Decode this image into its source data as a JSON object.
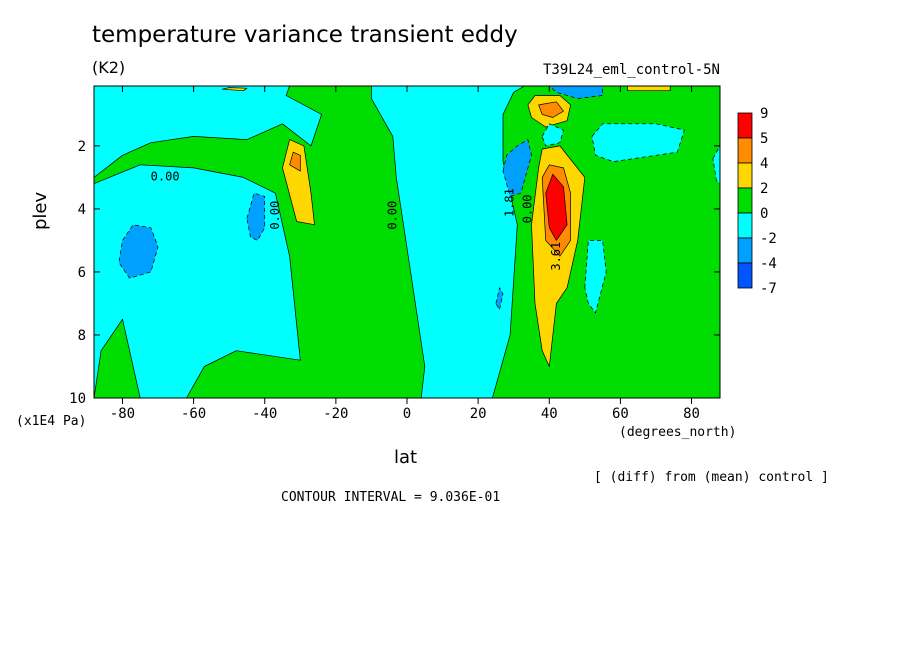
{
  "title": "temperature variance transient eddy",
  "units": "(K2)",
  "run": "T39L24_eml_control-5N",
  "y_unit": "(x1E4 Pa)",
  "x_unit": "(degrees_north)",
  "diff_note": "[ (diff) from (mean) control ]",
  "contour_interval": "CONTOUR INTERVAL = 9.036E-01",
  "chart_data": {
    "type": "heatmap",
    "xlabel": "lat",
    "ylabel": "plev",
    "xlim": [
      -88,
      88
    ],
    "ylim": [
      0.1,
      10
    ],
    "y_inverted": true,
    "x_ticks": [
      -80,
      -60,
      -40,
      -20,
      0,
      20,
      40,
      60,
      80
    ],
    "x_tick_labels": [
      "-80",
      "-60",
      "-40",
      "-20",
      "0",
      "20",
      "40",
      "60",
      "80"
    ],
    "y_ticks": [
      2,
      4,
      6,
      8,
      10
    ],
    "y_tick_labels": [
      "2",
      "4",
      "6",
      "8",
      "10"
    ],
    "legend": {
      "placement": "right",
      "levels": [
        "9",
        "5",
        "4",
        "2",
        "0",
        "-2",
        "-4",
        "-7"
      ],
      "colors": [
        "#ff0000",
        "#ff8c00",
        "#ffd700",
        "#00dd00",
        "#00ffff",
        "#00a0ff",
        "#0055ff"
      ]
    },
    "contour_labels": [
      {
        "text": "0.00",
        "lat": -68,
        "plev": 3.1
      },
      {
        "text": "0.00",
        "lat": -36,
        "plev": 4.2
      },
      {
        "text": "0.00",
        "lat": -3,
        "plev": 4.2
      },
      {
        "text": "1.81",
        "lat": 30,
        "plev": 3.8
      },
      {
        "text": "0.00",
        "lat": 35,
        "plev": 4.0
      },
      {
        "text": "3.61",
        "lat": 43,
        "plev": 5.5
      }
    ],
    "regions": [
      {
        "level": "0_2",
        "color": "#00dd00",
        "points": [
          [
            -88,
            3.0
          ],
          [
            -80,
            2.3
          ],
          [
            -72,
            1.9
          ],
          [
            -60,
            1.7
          ],
          [
            -45,
            1.8
          ],
          [
            -35,
            1.3
          ],
          [
            -27,
            2.0
          ],
          [
            -24,
            1.0
          ],
          [
            -34,
            0.4
          ],
          [
            -33,
            0.1
          ],
          [
            -10,
            0.1
          ],
          [
            -10,
            0.5
          ],
          [
            -4,
            1.7
          ],
          [
            -3,
            3.0
          ],
          [
            1,
            6.0
          ],
          [
            5,
            9.0
          ],
          [
            4,
            10
          ],
          [
            -62,
            10
          ],
          [
            -57,
            9.0
          ],
          [
            -48,
            8.5
          ],
          [
            -30,
            8.8
          ],
          [
            -33,
            5.5
          ],
          [
            -37,
            3.5
          ],
          [
            -46,
            3.0
          ],
          [
            -60,
            2.7
          ],
          [
            -75,
            2.6
          ],
          [
            -88,
            3.2
          ]
        ]
      },
      {
        "level": "0_2",
        "color": "#00dd00",
        "points": [
          [
            -88,
            10
          ],
          [
            -86,
            8.5
          ],
          [
            -80,
            7.5
          ],
          [
            -75,
            10
          ]
        ]
      },
      {
        "level": "0_2",
        "color": "#00dd00",
        "points": [
          [
            24,
            10
          ],
          [
            29,
            8.0
          ],
          [
            31,
            4.5
          ],
          [
            27,
            2.5
          ],
          [
            27,
            1.0
          ],
          [
            30,
            0.3
          ],
          [
            33,
            0.1
          ],
          [
            88,
            0.1
          ],
          [
            88,
            10
          ]
        ]
      },
      {
        "level": "2_4",
        "color": "#ffd700",
        "points": [
          [
            -35,
            2.7
          ],
          [
            -33,
            1.8
          ],
          [
            -29,
            2.0
          ],
          [
            -27,
            3.5
          ],
          [
            -26,
            4.5
          ],
          [
            -31,
            4.4
          ]
        ]
      },
      {
        "level": "4_5",
        "color": "#ff8c00",
        "points": [
          [
            -33,
            2.6
          ],
          [
            -32,
            2.2
          ],
          [
            -30,
            2.3
          ],
          [
            -30,
            2.8
          ]
        ]
      },
      {
        "level": "2_4",
        "color": "#ffd700",
        "points": [
          [
            34,
            0.7
          ],
          [
            36,
            0.4
          ],
          [
            43,
            0.4
          ],
          [
            46,
            0.7
          ],
          [
            45,
            1.2
          ],
          [
            39,
            1.4
          ],
          [
            35,
            1.1
          ]
        ]
      },
      {
        "level": "4_5",
        "color": "#ff8c00",
        "points": [
          [
            37,
            0.7
          ],
          [
            42,
            0.6
          ],
          [
            44,
            0.9
          ],
          [
            41,
            1.1
          ],
          [
            38,
            1.0
          ]
        ]
      },
      {
        "level": "2_4",
        "color": "#ffd700",
        "points": [
          [
            37,
            2.7
          ],
          [
            38,
            2.1
          ],
          [
            43,
            2.0
          ],
          [
            50,
            3.0
          ],
          [
            48,
            5.0
          ],
          [
            45,
            6.5
          ],
          [
            42,
            7.0
          ],
          [
            40,
            9.0
          ],
          [
            38,
            8.5
          ],
          [
            36,
            7.0
          ],
          [
            35,
            4.5
          ]
        ]
      },
      {
        "level": "4_5",
        "color": "#ff8c00",
        "points": [
          [
            38,
            3.0
          ],
          [
            40,
            2.6
          ],
          [
            44,
            2.7
          ],
          [
            46,
            3.5
          ],
          [
            46,
            5.0
          ],
          [
            43,
            5.5
          ],
          [
            39,
            5.0
          ]
        ]
      },
      {
        "level": "5_9",
        "color": "#ff0000",
        "points": [
          [
            39,
            3.5
          ],
          [
            41,
            2.9
          ],
          [
            44,
            3.3
          ],
          [
            45,
            4.5
          ],
          [
            42,
            5.0
          ],
          [
            40,
            4.6
          ]
        ]
      },
      {
        "level": "-2_0",
        "color": "#00ffff",
        "points": [
          [
            38,
            1.7
          ],
          [
            40,
            1.3
          ],
          [
            44,
            1.5
          ],
          [
            43,
            1.9
          ],
          [
            39,
            2.0
          ]
        ]
      },
      {
        "level": "-2_0",
        "color": "#00ffff",
        "points": [
          [
            52,
            1.7
          ],
          [
            55,
            1.3
          ],
          [
            70,
            1.3
          ],
          [
            78,
            1.5
          ],
          [
            76,
            2.2
          ],
          [
            58,
            2.5
          ],
          [
            53,
            2.3
          ]
        ]
      },
      {
        "level": "-2_0",
        "color": "#00ffff",
        "points": [
          [
            50,
            6.5
          ],
          [
            51,
            5.0
          ],
          [
            55,
            5.0
          ],
          [
            56,
            6.0
          ],
          [
            53,
            7.3
          ],
          [
            51,
            7.0
          ]
        ]
      },
      {
        "level": "-2_0",
        "color": "#00ffff",
        "points": [
          [
            86,
            2.4
          ],
          [
            88,
            2.0
          ],
          [
            88,
            3.2
          ],
          [
            87,
            3.1
          ]
        ]
      },
      {
        "level": "-4_-2",
        "color": "#00a0ff",
        "points": [
          [
            -80,
            5.0
          ],
          [
            -77,
            4.5
          ],
          [
            -72,
            4.6
          ],
          [
            -70,
            5.2
          ],
          [
            -72,
            6.0
          ],
          [
            -78,
            6.2
          ],
          [
            -81,
            5.7
          ]
        ]
      },
      {
        "level": "-4_-2",
        "color": "#00a0ff",
        "points": [
          [
            -45,
            4.3
          ],
          [
            -43,
            3.5
          ],
          [
            -40,
            3.6
          ],
          [
            -40,
            4.6
          ],
          [
            -42,
            5.0
          ],
          [
            -44,
            4.9
          ]
        ]
      },
      {
        "level": "-4_-2",
        "color": "#00a0ff",
        "points": [
          [
            27,
            2.8
          ],
          [
            28,
            2.3
          ],
          [
            31,
            2.0
          ],
          [
            34,
            1.8
          ],
          [
            35,
            2.3
          ],
          [
            32,
            3.5
          ],
          [
            29,
            3.6
          ]
        ]
      },
      {
        "level": "-4_-2",
        "color": "#00a0ff",
        "points": [
          [
            40,
            0.1
          ],
          [
            55,
            0.1
          ],
          [
            55,
            0.4
          ],
          [
            48,
            0.5
          ],
          [
            42,
            0.3
          ]
        ]
      },
      {
        "level": "-4_-2",
        "color": "#00a0ff",
        "points": [
          [
            25,
            7.0
          ],
          [
            26,
            6.5
          ],
          [
            27,
            6.7
          ],
          [
            26,
            7.2
          ]
        ]
      },
      {
        "level": "2_4",
        "color": "#ffd700",
        "points": [
          [
            -52,
            0.2
          ],
          [
            -50,
            0.15
          ],
          [
            -45,
            0.17
          ],
          [
            -46,
            0.25
          ]
        ]
      },
      {
        "level": "2_4",
        "color": "#ffd700",
        "points": [
          [
            62,
            0.1
          ],
          [
            74,
            0.1
          ],
          [
            74,
            0.25
          ],
          [
            62,
            0.25
          ]
        ]
      }
    ]
  }
}
